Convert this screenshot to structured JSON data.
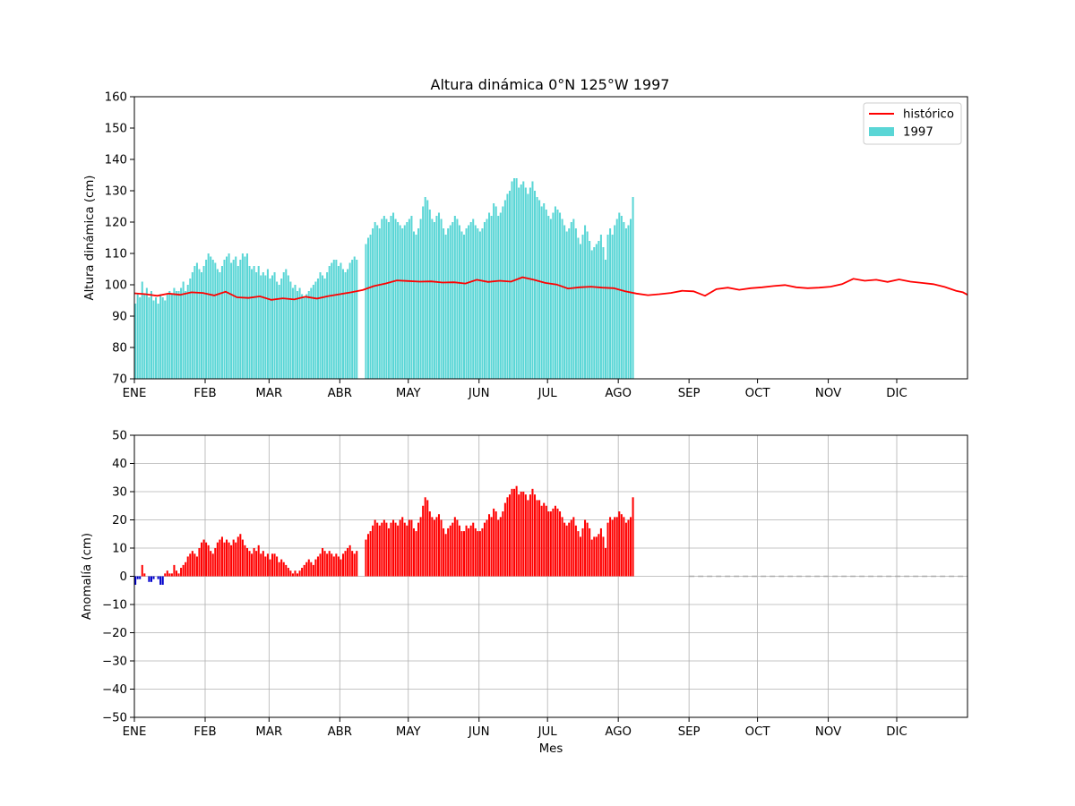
{
  "chart_data": [
    {
      "type": "bar+line",
      "title": "Altura dinámica 0°N 125°W 1997",
      "xlabel": "",
      "ylabel": "Altura dinámica (cm)",
      "ylim": [
        70,
        160
      ],
      "yticks": [
        "70",
        "80",
        "90",
        "100",
        "110",
        "120",
        "130",
        "140",
        "150",
        "160"
      ],
      "xlim_days": [
        0,
        365
      ],
      "month_ticks": [
        "ENE",
        "FEB",
        "MAR",
        "ABR",
        "MAY",
        "JUN",
        "JUL",
        "AGO",
        "SEP",
        "OCT",
        "NOV",
        "DIC"
      ],
      "legend": {
        "position": "top-right",
        "line_label": "histórico",
        "bar_label": "1997"
      },
      "colors": {
        "bars": "#5ad6d6",
        "line": "#ff0000"
      },
      "series": [
        {
          "name": "histórico",
          "kind": "line",
          "points": [
            [
              0,
              97.3
            ],
            [
              5,
              97.0
            ],
            [
              10,
              96.5
            ],
            [
              15,
              97.2
            ],
            [
              20,
              96.8
            ],
            [
              25,
              97.6
            ],
            [
              30,
              97.4
            ],
            [
              35,
              96.6
            ],
            [
              40,
              97.8
            ],
            [
              45,
              96.0
            ],
            [
              50,
              95.8
            ],
            [
              55,
              96.3
            ],
            [
              60,
              95.2
            ],
            [
              65,
              95.7
            ],
            [
              70,
              95.3
            ],
            [
              75,
              96.2
            ],
            [
              80,
              95.6
            ],
            [
              85,
              96.4
            ],
            [
              90,
              97.0
            ],
            [
              95,
              97.6
            ],
            [
              100,
              98.3
            ],
            [
              105,
              99.6
            ],
            [
              110,
              100.4
            ],
            [
              115,
              101.4
            ],
            [
              120,
              101.2
            ],
            [
              125,
              101.0
            ],
            [
              130,
              101.1
            ],
            [
              135,
              100.7
            ],
            [
              140,
              100.8
            ],
            [
              145,
              100.4
            ],
            [
              150,
              101.6
            ],
            [
              155,
              100.9
            ],
            [
              160,
              101.3
            ],
            [
              165,
              101.0
            ],
            [
              170,
              102.4
            ],
            [
              175,
              101.6
            ],
            [
              180,
              100.6
            ],
            [
              185,
              100.1
            ],
            [
              190,
              98.8
            ],
            [
              195,
              99.2
            ],
            [
              200,
              99.4
            ],
            [
              205,
              99.1
            ],
            [
              210,
              98.9
            ],
            [
              215,
              97.9
            ],
            [
              220,
              97.2
            ],
            [
              225,
              96.7
            ],
            [
              230,
              97.0
            ],
            [
              235,
              97.4
            ],
            [
              240,
              98.1
            ],
            [
              245,
              97.9
            ],
            [
              250,
              96.5
            ],
            [
              255,
              98.6
            ],
            [
              260,
              99.1
            ],
            [
              265,
              98.4
            ],
            [
              270,
              98.9
            ],
            [
              275,
              99.2
            ],
            [
              280,
              99.6
            ],
            [
              285,
              99.9
            ],
            [
              290,
              99.2
            ],
            [
              295,
              98.9
            ],
            [
              300,
              99.1
            ],
            [
              305,
              99.4
            ],
            [
              310,
              100.2
            ],
            [
              315,
              101.9
            ],
            [
              320,
              101.3
            ],
            [
              325,
              101.6
            ],
            [
              330,
              100.9
            ],
            [
              335,
              101.7
            ],
            [
              340,
              101.0
            ],
            [
              345,
              100.6
            ],
            [
              350,
              100.2
            ],
            [
              355,
              99.3
            ],
            [
              360,
              98.1
            ],
            [
              363,
              97.6
            ],
            [
              365,
              96.8
            ]
          ]
        },
        {
          "name": "1997",
          "kind": "bar",
          "segments": [
            {
              "start_day": 0,
              "values": [
                94,
                97,
                96,
                101,
                97,
                99,
                96,
                98,
                95,
                96,
                94,
                97,
                96,
                95,
                97,
                98,
                97,
                99,
                98,
                98,
                99,
                101,
                98,
                100,
                102,
                104,
                106,
                107,
                105,
                104,
                106,
                108,
                110,
                109,
                108,
                107,
                105,
                104,
                106,
                108,
                109,
                110,
                107,
                108,
                109,
                106,
                108,
                110,
                109,
                110,
                106,
                105,
                106,
                104,
                106,
                103,
                104,
                103,
                105,
                102,
                103,
                104,
                101,
                100,
                102,
                104,
                105,
                103,
                101,
                99,
                100,
                98,
                99,
                97,
                96,
                97,
                98,
                99,
                100,
                101,
                102,
                104,
                103,
                102,
                104,
                106,
                107,
                108,
                108,
                106,
                107,
                105,
                104,
                105,
                107,
                108,
                109,
                108
              ]
            },
            {
              "start_day": 101,
              "values": [
                113,
                115,
                116,
                118,
                120,
                119,
                118,
                121,
                122,
                121,
                120,
                122,
                123,
                121,
                120,
                119,
                118,
                119,
                120,
                121,
                122,
                117,
                116,
                118,
                121,
                125,
                128,
                127,
                124,
                121,
                120,
                122,
                123,
                121,
                118,
                116,
                118,
                119,
                120,
                122,
                121,
                119,
                117,
                116,
                118,
                119,
                120,
                121,
                119,
                118,
                117,
                118,
                120,
                121,
                123,
                122,
                126,
                125,
                122,
                123,
                125,
                127,
                129,
                130,
                133,
                134,
                134,
                131,
                132,
                133,
                131,
                129,
                131,
                133,
                130,
                128,
                127,
                125,
                126,
                124,
                122,
                121,
                123,
                125,
                124,
                123,
                121,
                119,
                117,
                118,
                120,
                121,
                118,
                115,
                113,
                116,
                119,
                117,
                114,
                111,
                112,
                113,
                114,
                116,
                112,
                108,
                116,
                118,
                116,
                119,
                121,
                123,
                122,
                120,
                118,
                119,
                121,
                128
              ]
            }
          ]
        }
      ]
    },
    {
      "type": "bar",
      "title": "",
      "xlabel": "Mes",
      "ylabel": "Anomalía (cm)",
      "ylim": [
        -50,
        50
      ],
      "yticks": [
        "−50",
        "−40",
        "−30",
        "−20",
        "−10",
        "0",
        "10",
        "20",
        "30",
        "40",
        "50"
      ],
      "xlim_days": [
        0,
        365
      ],
      "month_ticks": [
        "ENE",
        "FEB",
        "MAR",
        "ABR",
        "MAY",
        "JUN",
        "JUL",
        "AGO",
        "SEP",
        "OCT",
        "NOV",
        "DIC"
      ],
      "grid": true,
      "colors": {
        "positive": "#ff0000",
        "negative": "#0000cc",
        "zero_line": "#aaaaaa"
      },
      "zero_line_from_day": 243,
      "series": [
        {
          "name": "anomalía",
          "segments": [
            {
              "start_day": 0,
              "values": [
                -3,
                -1,
                -1,
                4,
                1,
                0,
                -2,
                -2,
                -1,
                0,
                -1,
                -3,
                -3,
                1,
                2,
                1,
                1,
                4,
                2,
                1,
                3,
                4,
                5,
                7,
                8,
                9,
                8,
                7,
                10,
                12,
                13,
                12,
                11,
                9,
                8,
                10,
                12,
                13,
                14,
                12,
                13,
                12,
                11,
                13,
                12,
                14,
                15,
                13,
                11,
                10,
                9,
                8,
                10,
                9,
                11,
                8,
                9,
                7,
                8,
                6,
                8,
                8,
                7,
                5,
                6,
                5,
                4,
                3,
                2,
                1,
                2,
                1,
                2,
                3,
                4,
                5,
                6,
                5,
                4,
                6,
                7,
                8,
                10,
                9,
                8,
                9,
                8,
                7,
                8,
                7,
                6,
                8,
                9,
                10,
                11,
                9,
                8,
                9
              ]
            },
            {
              "start_day": 101,
              "values": [
                13,
                15,
                16,
                18,
                20,
                19,
                18,
                19,
                20,
                19,
                17,
                19,
                20,
                19,
                18,
                20,
                21,
                19,
                18,
                20,
                20,
                17,
                16,
                19,
                21,
                25,
                28,
                27,
                23,
                21,
                20,
                21,
                22,
                20,
                17,
                15,
                17,
                18,
                19,
                21,
                20,
                18,
                16,
                16,
                18,
                17,
                18,
                19,
                17,
                16,
                16,
                17,
                19,
                20,
                22,
                21,
                24,
                23,
                20,
                21,
                23,
                26,
                28,
                29,
                31,
                31,
                32,
                29,
                30,
                30,
                29,
                27,
                29,
                31,
                29,
                27,
                27,
                25,
                26,
                25,
                23,
                23,
                24,
                25,
                24,
                23,
                21,
                19,
                18,
                19,
                20,
                21,
                18,
                16,
                14,
                17,
                20,
                19,
                17,
                13,
                14,
                14,
                15,
                17,
                14,
                10,
                19,
                21,
                20,
                21,
                21,
                23,
                22,
                21,
                19,
                20,
                21,
                28
              ]
            }
          ]
        }
      ]
    }
  ]
}
